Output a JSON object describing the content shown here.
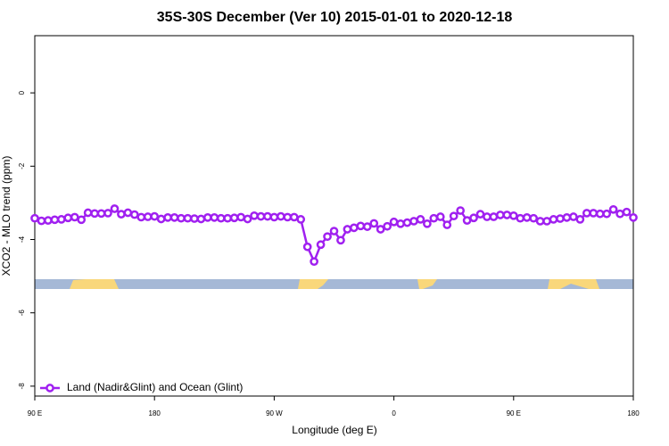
{
  "chart_data": {
    "type": "line",
    "title": "35S-30S December (Ver 10)   2015-01-01 to 2020-12-18",
    "xlabel": "Longitude (deg E)",
    "ylabel": "XCO2 - MLO trend (ppm)",
    "x": [
      90,
      95,
      100,
      105,
      110,
      115,
      120,
      125,
      130,
      135,
      140,
      145,
      150,
      155,
      160,
      165,
      170,
      175,
      180,
      185,
      190,
      195,
      200,
      205,
      210,
      215,
      220,
      225,
      230,
      235,
      240,
      245,
      250,
      255,
      260,
      265,
      270,
      275,
      280,
      285,
      290,
      295,
      300,
      305,
      310,
      315,
      320,
      325,
      330,
      335,
      340,
      345,
      350,
      355,
      360,
      365,
      370,
      375,
      380,
      385,
      390,
      395,
      400,
      405,
      410,
      415,
      420,
      425,
      430,
      435,
      440,
      445,
      450,
      455,
      460,
      465,
      470,
      475,
      480,
      485,
      490,
      495,
      500,
      505,
      510,
      515,
      520,
      525,
      530,
      535,
      540
    ],
    "series": [
      {
        "name": "Land (Nadir&Glint) and Ocean (Glint)",
        "color": "#a020f0",
        "values": [
          -3.42,
          -3.49,
          -3.48,
          -3.46,
          -3.45,
          -3.41,
          -3.39,
          -3.46,
          -3.27,
          -3.29,
          -3.29,
          -3.28,
          -3.16,
          -3.31,
          -3.27,
          -3.32,
          -3.39,
          -3.38,
          -3.37,
          -3.44,
          -3.4,
          -3.4,
          -3.42,
          -3.42,
          -3.43,
          -3.44,
          -3.4,
          -3.4,
          -3.42,
          -3.42,
          -3.41,
          -3.39,
          -3.44,
          -3.35,
          -3.37,
          -3.37,
          -3.39,
          -3.37,
          -3.39,
          -3.39,
          -3.45,
          -4.2,
          -4.6,
          -4.14,
          -3.92,
          -3.77,
          -4.02,
          -3.72,
          -3.68,
          -3.63,
          -3.65,
          -3.56,
          -3.72,
          -3.64,
          -3.52,
          -3.57,
          -3.54,
          -3.5,
          -3.45,
          -3.57,
          -3.42,
          -3.38,
          -3.6,
          -3.36,
          -3.21,
          -3.48,
          -3.41,
          -3.31,
          -3.38,
          -3.38,
          -3.33,
          -3.33,
          -3.35,
          -3.42,
          -3.4,
          -3.42,
          -3.5,
          -3.5,
          -3.45,
          -3.43,
          -3.4,
          -3.38,
          -3.45,
          -3.28,
          -3.28,
          -3.3,
          -3.3,
          -3.18,
          -3.3,
          -3.25,
          -3.4
        ]
      }
    ],
    "xlim": [
      90,
      540
    ],
    "xticks": [
      {
        "value": 90,
        "label": "90 E"
      },
      180,
      {
        "value": 270,
        "label": "90 W"
      },
      {
        "value": 360,
        "label": "0"
      },
      {
        "value": 450,
        "label": "90 E"
      },
      {
        "value": 540,
        "label": "180"
      }
    ],
    "ylim": [
      -8.27,
      1.56
    ],
    "yticks": [
      0,
      -2,
      -4,
      -6,
      -8
    ],
    "legend": "bottomleft"
  }
}
